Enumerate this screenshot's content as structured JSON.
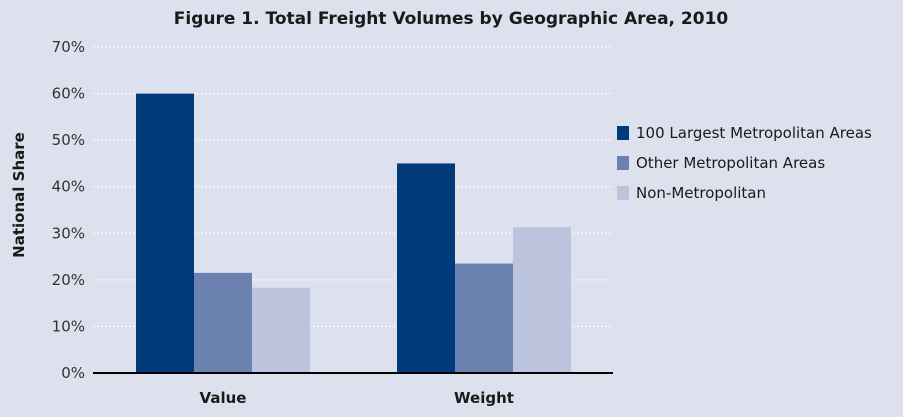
{
  "chart_data": {
    "type": "bar",
    "title": "Figure 1. Total Freight Volumes by Geographic Area, 2010",
    "ylabel": "National Share",
    "xlabel": "",
    "categories": [
      "Value",
      "Weight"
    ],
    "series": [
      {
        "name": "100 Largest Metropolitan Areas",
        "color": "#003a78",
        "values": [
          60,
          45
        ]
      },
      {
        "name": "Other Metropolitan Areas",
        "color": "#6b82b0",
        "values": [
          21.5,
          23.5
        ]
      },
      {
        "name": "Non-Metropolitan",
        "color": "#bcc3dc",
        "values": [
          18.3,
          31.3
        ]
      }
    ],
    "ylim": [
      0,
      70
    ],
    "yticks": [
      0,
      10,
      20,
      30,
      40,
      50,
      60,
      70
    ],
    "ytick_labels": [
      "0%",
      "10%",
      "20%",
      "30%",
      "40%",
      "50%",
      "60%",
      "70%"
    ],
    "grid": true,
    "legend_position": "right"
  }
}
